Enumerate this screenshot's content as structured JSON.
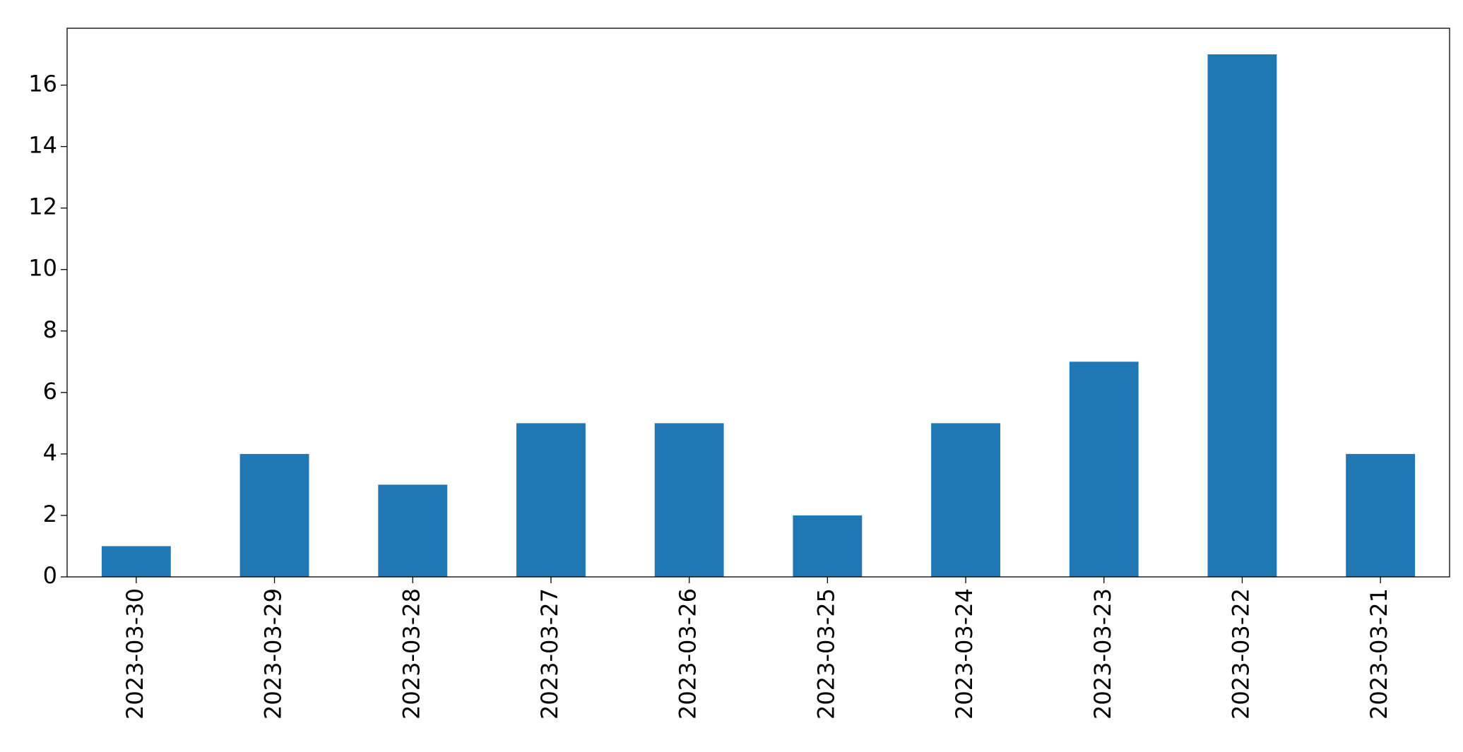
{
  "chart_data": {
    "type": "bar",
    "categories": [
      "2023-03-30",
      "2023-03-29",
      "2023-03-28",
      "2023-03-27",
      "2023-03-26",
      "2023-03-25",
      "2023-03-24",
      "2023-03-23",
      "2023-03-22",
      "2023-03-21"
    ],
    "values": [
      1,
      4,
      3,
      5,
      5,
      2,
      5,
      7,
      17,
      4
    ],
    "color": "#1f77b4",
    "ylim": [
      0,
      17.85
    ],
    "yticks": [
      0,
      2,
      4,
      6,
      8,
      10,
      12,
      14,
      16
    ],
    "grid": false
  }
}
